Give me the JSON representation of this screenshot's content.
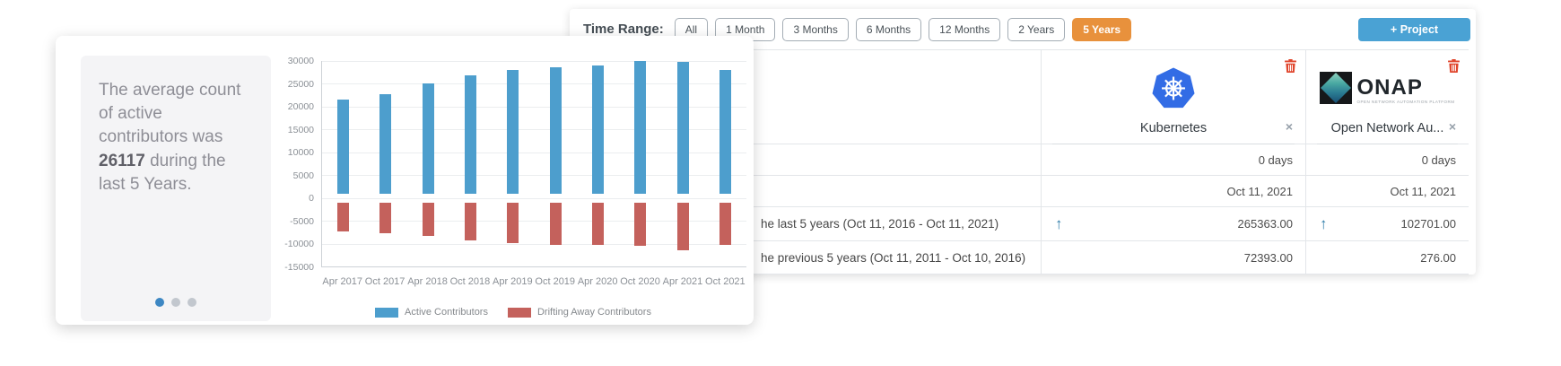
{
  "top_panel": {
    "time_range": {
      "label": "Time Range:",
      "options": [
        {
          "label": "All",
          "selected": false
        },
        {
          "label": "1 Month",
          "selected": false
        },
        {
          "label": "3 Months",
          "selected": false
        },
        {
          "label": "6 Months",
          "selected": false
        },
        {
          "label": "12 Months",
          "selected": false
        },
        {
          "label": "2 Years",
          "selected": false
        },
        {
          "label": "5 Years",
          "selected": true
        }
      ],
      "selected_color": "#e8913c"
    },
    "project_button": {
      "label": "+ Project",
      "color": "#4aa2d4"
    },
    "table": {
      "columns": [
        {
          "name": "Kubernetes",
          "logo": "kubernetes-logo",
          "close_glyph": "×"
        },
        {
          "name": "Open Network Au...",
          "logo": "onap-logo",
          "close_glyph": "×",
          "logo_text": "ONAP",
          "logo_tagline": "OPEN NETWORK AUTOMATION PLATFORM"
        }
      ],
      "rows": [
        {
          "label": "",
          "values": [
            "0 days",
            "0 days"
          ],
          "arrows": [
            false,
            false
          ]
        },
        {
          "label": "",
          "values": [
            "Oct 11, 2021",
            "Oct 11, 2021"
          ],
          "arrows": [
            false,
            false
          ]
        },
        {
          "label": "he last 5 years (Oct 11, 2016 - Oct 11, 2021)",
          "values": [
            "265363.00",
            "102701.00"
          ],
          "arrows": [
            true,
            true
          ]
        },
        {
          "label": "he previous 5 years (Oct 11, 2011 - Oct 10, 2016)",
          "values": [
            "72393.00",
            "276.00"
          ],
          "arrows": [
            false,
            false
          ]
        }
      ]
    }
  },
  "chart_card": {
    "summary": {
      "text_before": "The average count of active contributors was ",
      "highlight": "26117",
      "text_after": " during the last 5 Years.",
      "dot_count": 3,
      "active_dot": 0
    }
  },
  "chart_data": {
    "type": "bar",
    "title": "",
    "categories": [
      "Apr 2017",
      "Oct 2017",
      "Apr 2018",
      "Oct 2018",
      "Apr 2019",
      "Oct 2019",
      "Apr 2020",
      "Oct 2020",
      "Apr 2021",
      "Oct 2021"
    ],
    "series": [
      {
        "name": "Active Contributors",
        "color": "#4d9ecd",
        "values": [
          21500,
          22800,
          25000,
          26800,
          28000,
          28600,
          29000,
          30000,
          29800,
          28000
        ]
      },
      {
        "name": "Drifting Away Contributors",
        "color": "#c4615c",
        "values": [
          -7400,
          -7700,
          -8400,
          -9300,
          -9900,
          -10200,
          -10300,
          -10500,
          -11400,
          -10300
        ]
      }
    ],
    "ylim": [
      -15000,
      30000
    ],
    "ytick_step": 5000,
    "baseline_gap": 1000,
    "grid": true,
    "legend_position": "bottom"
  }
}
